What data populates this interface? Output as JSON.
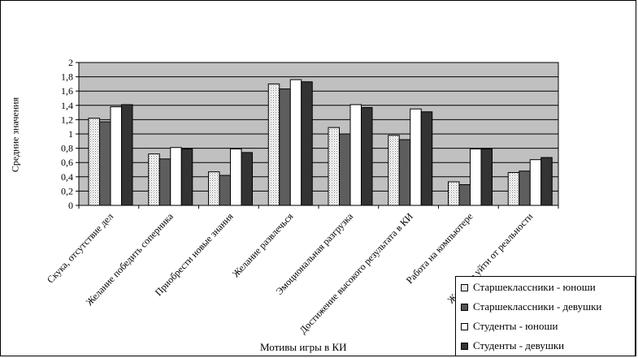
{
  "chart_data": {
    "type": "bar",
    "xlabel": "Мотивы игры в КИ",
    "ylabel": "Средние значения",
    "ylim": [
      0,
      2
    ],
    "yticks": [
      "0",
      "0,2",
      "0,4",
      "0,6",
      "0,8",
      "1",
      "1,2",
      "1,4",
      "1,6",
      "1,8",
      "2"
    ],
    "grid": true,
    "legend_position": "bottom-right",
    "categories": [
      "Скука, отсутствие дел",
      "Желание победить соперника",
      "Приобрести новые знания",
      "Желание развлечься",
      "Эмоциональная разгрузка",
      "Достижение высокого результата в КИ",
      "Работа на компьютере",
      "Желание уйти от реальности"
    ],
    "series": [
      {
        "name": "Старшеклассники - юноши",
        "fill": "dots",
        "color": "#d9d9d9",
        "values": [
          1.22,
          0.72,
          0.47,
          1.7,
          1.09,
          0.98,
          0.33,
          0.46
        ]
      },
      {
        "name": "Старшеклассники - девушки",
        "fill": "checker",
        "color": "#555555",
        "values": [
          1.17,
          0.65,
          0.42,
          1.63,
          1.0,
          0.92,
          0.29,
          0.48
        ]
      },
      {
        "name": "Студенты - юноши",
        "fill": "white",
        "color": "#ffffff",
        "values": [
          1.38,
          0.81,
          0.79,
          1.76,
          1.41,
          1.35,
          0.79,
          0.64
        ]
      },
      {
        "name": "Студенты - девушки",
        "fill": "solid",
        "color": "#333333",
        "values": [
          1.41,
          0.79,
          0.74,
          1.73,
          1.37,
          1.31,
          0.79,
          0.67
        ]
      }
    ],
    "plot_background": "#c0c0c0"
  }
}
